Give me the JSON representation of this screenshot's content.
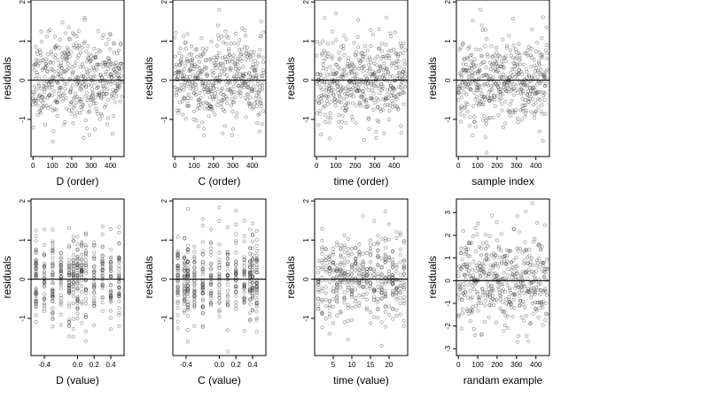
{
  "chart_data": [
    {
      "type": "scatter",
      "xlabel": "D (order)",
      "ylabel": "residuals",
      "xlim": [
        -10,
        470
      ],
      "ylim": [
        -1.95,
        2.05
      ],
      "xticks": [
        0,
        100,
        200,
        300,
        400
      ],
      "xtick_labels": [
        "0",
        "100",
        "200",
        "300",
        "400"
      ],
      "yticks": [
        -1,
        0,
        1,
        2
      ],
      "ytick_labels": [
        "-1",
        "0",
        "1",
        "2"
      ],
      "reference_line": 0,
      "n": 460,
      "x_kind": "index",
      "spread": 0.55,
      "seed": 11
    },
    {
      "type": "scatter",
      "xlabel": "C (order)",
      "ylabel": "residuals",
      "xlim": [
        -10,
        470
      ],
      "ylim": [
        -1.95,
        2.05
      ],
      "xticks": [
        0,
        100,
        200,
        300,
        400
      ],
      "xtick_labels": [
        "0",
        "100",
        "200",
        "300",
        "400"
      ],
      "yticks": [
        -1,
        0,
        1,
        2
      ],
      "ytick_labels": [
        "-1",
        "0",
        "1",
        "2"
      ],
      "reference_line": 0,
      "n": 460,
      "x_kind": "index",
      "spread": 0.55,
      "seed": 23
    },
    {
      "type": "scatter",
      "xlabel": "time (order)",
      "ylabel": "residuals",
      "xlim": [
        -10,
        470
      ],
      "ylim": [
        -1.95,
        2.05
      ],
      "xticks": [
        0,
        100,
        200,
        300,
        400
      ],
      "xtick_labels": [
        "0",
        "100",
        "200",
        "300",
        "400"
      ],
      "yticks": [
        -1,
        0,
        1,
        2
      ],
      "ytick_labels": [
        "-1",
        "0",
        "1",
        "2"
      ],
      "reference_line": 0,
      "n": 460,
      "x_kind": "index",
      "spread": 0.55,
      "seed": 37
    },
    {
      "type": "scatter",
      "xlabel": "sample index",
      "ylabel": "residuals",
      "xlim": [
        -10,
        470
      ],
      "ylim": [
        -1.95,
        2.05
      ],
      "xticks": [
        0,
        100,
        200,
        300,
        400
      ],
      "xtick_labels": [
        "0",
        "100",
        "200",
        "300",
        "400"
      ],
      "yticks": [
        -1,
        0,
        1,
        2
      ],
      "ytick_labels": [
        "-1",
        "0",
        "1",
        "2"
      ],
      "reference_line": 0,
      "n": 460,
      "x_kind": "index",
      "spread": 0.55,
      "seed": 41
    },
    {
      "type": "scatter",
      "xlabel": "D (value)",
      "ylabel": "residuals",
      "xlim": [
        -0.56,
        0.56
      ],
      "ylim": [
        -1.95,
        2.05
      ],
      "xticks": [
        -0.4,
        0,
        0.2,
        0.4
      ],
      "xtick_labels": [
        "-0.4",
        "0.0",
        "0.2",
        "0.4"
      ],
      "yticks": [
        -1,
        0,
        1,
        2
      ],
      "ytick_labels": [
        "-1",
        "0",
        "1",
        "2"
      ],
      "reference_line": 0,
      "n": 460,
      "x_kind": "discrete",
      "x_levels": [
        -0.5,
        -0.4,
        -0.3,
        -0.2,
        -0.1,
        -0.05,
        0,
        0.05,
        0.1,
        0.2,
        0.3,
        0.4,
        0.5
      ],
      "spread": 0.55,
      "seed": 53
    },
    {
      "type": "scatter",
      "xlabel": "C (value)",
      "ylabel": "residuals",
      "xlim": [
        -0.56,
        0.56
      ],
      "ylim": [
        -1.95,
        2.05
      ],
      "xticks": [
        -0.4,
        0,
        0.2,
        0.4
      ],
      "xtick_labels": [
        "-0.4",
        "0.0",
        "0.2",
        "0.4"
      ],
      "yticks": [
        -1,
        0,
        1,
        2
      ],
      "ytick_labels": [
        "-1",
        "0",
        "1",
        "2"
      ],
      "reference_line": 0,
      "n": 460,
      "x_kind": "discrete",
      "x_levels": [
        -0.5,
        -0.42,
        -0.38,
        -0.3,
        -0.2,
        -0.1,
        0,
        0.1,
        0.2,
        0.3,
        0.37,
        0.4,
        0.45
      ],
      "spread": 0.55,
      "seed": 67
    },
    {
      "type": "scatter",
      "xlabel": "time (value)",
      "ylabel": "residuals",
      "xlim": [
        0,
        25
      ],
      "ylim": [
        -1.95,
        2.05
      ],
      "xticks": [
        5,
        10,
        15,
        20
      ],
      "xtick_labels": [
        "5",
        "10",
        "15",
        "20"
      ],
      "yticks": [
        -1,
        0,
        1,
        2
      ],
      "ytick_labels": [
        "-1",
        "0",
        "1",
        "2"
      ],
      "reference_line": 0,
      "n": 460,
      "x_kind": "discrete",
      "x_levels": [
        1,
        2,
        3,
        4,
        5,
        6,
        7,
        8,
        9,
        10,
        11,
        12,
        13,
        14,
        15,
        16,
        17,
        18,
        19,
        20,
        21,
        22,
        23,
        24
      ],
      "spread": 0.55,
      "seed": 79
    },
    {
      "type": "scatter",
      "xlabel": "randam example",
      "ylabel": "residuals",
      "xlim": [
        -10,
        470
      ],
      "ylim": [
        -3.3,
        3.6
      ],
      "xticks": [
        0,
        100,
        200,
        300,
        400
      ],
      "xtick_labels": [
        "0",
        "100",
        "200",
        "300",
        "400"
      ],
      "yticks": [
        -3,
        -2,
        -1,
        0,
        1,
        2,
        3
      ],
      "ytick_labels": [
        "-3",
        "-2",
        "-1",
        "0",
        "1",
        "2",
        "3"
      ],
      "reference_line": 0,
      "n": 460,
      "x_kind": "index",
      "spread": 1.05,
      "seed": 97
    }
  ]
}
